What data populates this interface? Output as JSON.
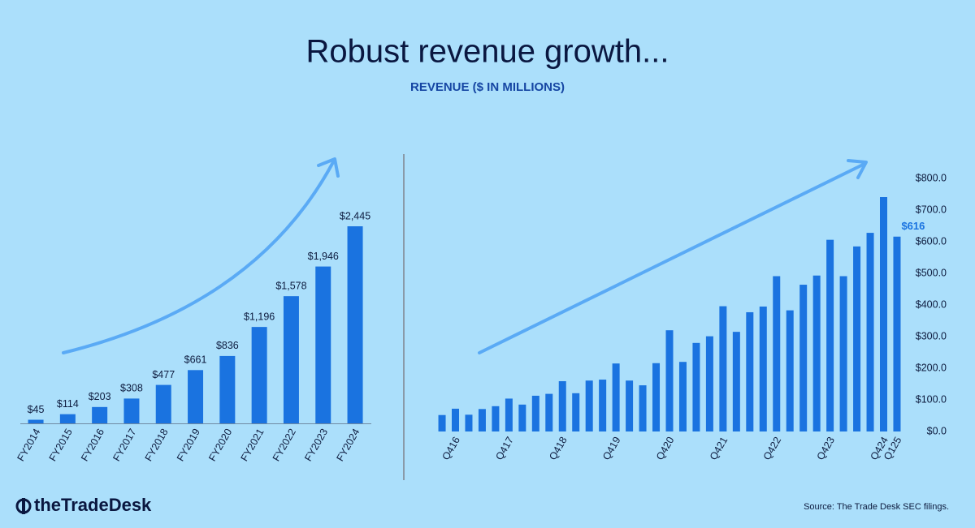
{
  "title": "Robust revenue growth...",
  "subtitle": "REVENUE ($ IN MILLIONS)",
  "logo": "theTradeDesk",
  "source": "Source: The Trade Desk SEC filings.",
  "chart_data": [
    {
      "type": "bar",
      "categories": [
        "FY2014",
        "FY2015",
        "FY2016",
        "FY2017",
        "FY2018",
        "FY2019",
        "FY2020",
        "FY2021",
        "FY2022",
        "FY2023",
        "FY2024"
      ],
      "values": [
        45,
        114,
        203,
        308,
        477,
        661,
        836,
        1196,
        1578,
        1946,
        2445
      ],
      "value_labels": [
        "$45",
        "$114",
        "$203",
        "$308",
        "$477",
        "$661",
        "$836",
        "$1,196",
        "$1,578",
        "$1,946",
        "$2,445"
      ],
      "color": "#1a73e0"
    },
    {
      "type": "bar",
      "categories": [
        null,
        "Q416",
        null,
        null,
        null,
        "Q417",
        null,
        null,
        null,
        "Q418",
        null,
        null,
        null,
        "Q419",
        null,
        null,
        null,
        "Q420",
        null,
        null,
        null,
        "Q421",
        null,
        null,
        null,
        "Q422",
        null,
        null,
        null,
        "Q423",
        null,
        null,
        null,
        "Q424",
        "Q125"
      ],
      "values": [
        52,
        72,
        53,
        71,
        80,
        104,
        85,
        113,
        119,
        159,
        121,
        161,
        164,
        215,
        161,
        146,
        216,
        320,
        220,
        280,
        301,
        396,
        315,
        377,
        395,
        491,
        383,
        464,
        493,
        606,
        491,
        585,
        628,
        741,
        616
      ],
      "value_labels": [
        null,
        null,
        null,
        null,
        null,
        null,
        null,
        null,
        null,
        null,
        null,
        null,
        null,
        null,
        null,
        null,
        null,
        null,
        null,
        null,
        null,
        null,
        null,
        null,
        null,
        null,
        null,
        null,
        null,
        null,
        null,
        null,
        null,
        null,
        "$616"
      ],
      "color": "#1a73e0",
      "ylim": [
        0,
        800
      ],
      "yticks": [
        {
          "value": 0,
          "label": "$0.0"
        },
        {
          "value": 100,
          "label": "$100.0"
        },
        {
          "value": 200,
          "label": "$200.0"
        },
        {
          "value": 300,
          "label": "$300.0"
        },
        {
          "value": 400,
          "label": "$400.0"
        },
        {
          "value": 500,
          "label": "$500.0"
        },
        {
          "value": 600,
          "label": "$600.0"
        },
        {
          "value": 700,
          "label": "$700.0"
        },
        {
          "value": 800,
          "label": "$800.0"
        }
      ]
    }
  ]
}
